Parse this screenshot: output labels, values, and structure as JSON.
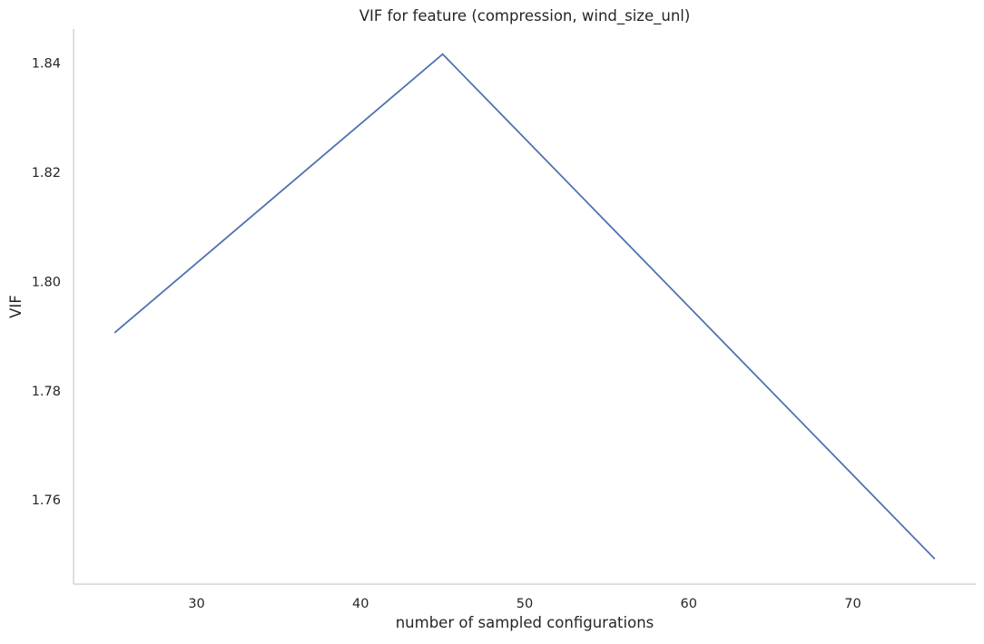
{
  "chart_data": {
    "type": "line",
    "title": "VIF for feature (compression, wind_size_unl)",
    "xlabel": "number of sampled configurations",
    "ylabel": "VIF",
    "x": [
      25,
      45,
      75
    ],
    "series": [
      {
        "values": [
          1.7906,
          1.8416,
          1.7492
        ]
      }
    ],
    "xlim": [
      22.5,
      77.5
    ],
    "ylim": [
      1.7446,
      1.8462
    ],
    "xticks": [
      30,
      40,
      50,
      60,
      70
    ],
    "xtick_labels": [
      "30",
      "40",
      "50",
      "60",
      "70"
    ],
    "yticks": [
      1.76,
      1.78,
      1.8,
      1.82,
      1.84
    ],
    "ytick_labels": [
      "1.76",
      "1.78",
      "1.80",
      "1.82",
      "1.84"
    ],
    "grid": false,
    "line_color": "#4c72b0",
    "spine_color": "#cccccc"
  }
}
